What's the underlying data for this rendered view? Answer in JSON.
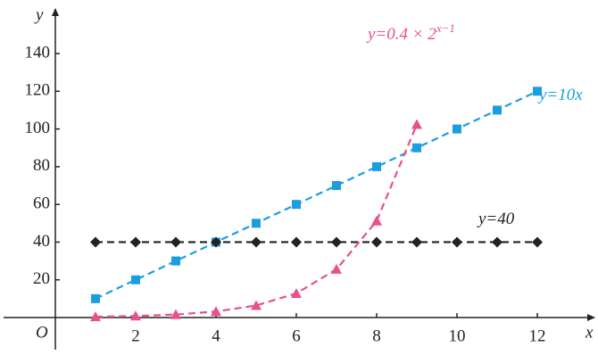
{
  "chart_data": {
    "type": "line",
    "x_label": "x",
    "y_label": "y",
    "origin_label": "O",
    "xlim": [
      0,
      13.4
    ],
    "ylim": [
      0,
      158
    ],
    "xticks": [
      2,
      4,
      6,
      8,
      10,
      12
    ],
    "yticks": [
      20,
      40,
      60,
      80,
      100,
      120,
      140
    ],
    "grid": false,
    "series": [
      {
        "name": "y=10x",
        "color": "#1b9ee0",
        "marker": "square",
        "x": [
          1,
          2,
          3,
          4,
          5,
          6,
          7,
          8,
          9,
          10,
          11,
          12
        ],
        "values": [
          10,
          20,
          30,
          40,
          50,
          60,
          70,
          80,
          90,
          100,
          110,
          120
        ]
      },
      {
        "name": "y=40",
        "color": "#222222",
        "marker": "diamond",
        "x": [
          1,
          2,
          3,
          4,
          5,
          6,
          7,
          8,
          9,
          10,
          11,
          12
        ],
        "values": [
          40,
          40,
          40,
          40,
          40,
          40,
          40,
          40,
          40,
          40,
          40,
          40
        ]
      },
      {
        "name": "y=0.4 × 2",
        "name_sup": "x−1",
        "color": "#e8508f",
        "marker": "triangle",
        "x": [
          1,
          2,
          3,
          4,
          5,
          6,
          7,
          8,
          9
        ],
        "values": [
          0.4,
          0.8,
          1.6,
          3.2,
          6.4,
          12.8,
          25.6,
          51.2,
          102.4
        ]
      }
    ]
  }
}
